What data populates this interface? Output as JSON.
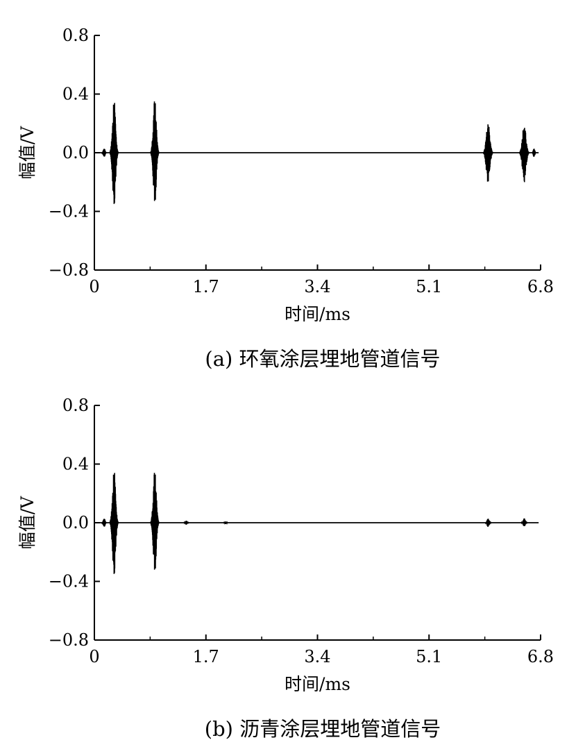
{
  "chart_data": [
    {
      "type": "line",
      "caption": "(a) 环氧涂层埋地管道信号",
      "xlabel": "时间/ms",
      "ylabel": "幅值/V",
      "xlim": [
        0,
        6.8
      ],
      "ylim": [
        -0.8,
        0.8
      ],
      "x_ticks": [
        {
          "value": 0,
          "label": "0"
        },
        {
          "value": 1.7,
          "label": "1.7"
        },
        {
          "value": 3.4,
          "label": "3.4"
        },
        {
          "value": 5.1,
          "label": "5.1"
        },
        {
          "value": 6.8,
          "label": "6.8"
        }
      ],
      "x_minor_ticks": [
        0.85,
        2.55,
        4.25,
        5.95
      ],
      "y_ticks": [
        {
          "value": -0.8,
          "label": "−0.8"
        },
        {
          "value": -0.4,
          "label": "−0.4"
        },
        {
          "value": 0.0,
          "label": "0.0"
        },
        {
          "value": 0.4,
          "label": "0.4"
        },
        {
          "value": 0.8,
          "label": "0.8"
        }
      ],
      "grid": false,
      "series": [
        {
          "color": "#000000",
          "baseline": 0.0,
          "bursts": [
            {
              "center": 0.15,
              "amp_pos": 0.03,
              "amp_neg": -0.03,
              "width": 0.07
            },
            {
              "center": 0.3,
              "amp_pos": 0.39,
              "amp_neg": -0.37,
              "width": 0.12
            },
            {
              "center": 0.92,
              "amp_pos": 0.37,
              "amp_neg": -0.36,
              "width": 0.12
            },
            {
              "center": 6.0,
              "amp_pos": 0.21,
              "amp_neg": -0.22,
              "width": 0.14
            },
            {
              "center": 6.55,
              "amp_pos": 0.2,
              "amp_neg": -0.21,
              "width": 0.14
            },
            {
              "center": 6.7,
              "amp_pos": 0.03,
              "amp_neg": -0.03,
              "width": 0.06
            }
          ]
        }
      ]
    },
    {
      "type": "line",
      "caption": "(b) 沥青涂层埋地管道信号",
      "xlabel": "时间/ms",
      "ylabel": "幅值/V",
      "xlim": [
        0,
        6.8
      ],
      "ylim": [
        -0.8,
        0.8
      ],
      "x_ticks": [
        {
          "value": 0,
          "label": "0"
        },
        {
          "value": 1.7,
          "label": "1.7"
        },
        {
          "value": 3.4,
          "label": "3.4"
        },
        {
          "value": 5.1,
          "label": "5.1"
        },
        {
          "value": 6.8,
          "label": "6.8"
        }
      ],
      "x_minor_ticks": [
        0.85,
        2.55,
        4.25,
        5.95
      ],
      "y_ticks": [
        {
          "value": -0.8,
          "label": "−0.8"
        },
        {
          "value": -0.4,
          "label": "−0.4"
        },
        {
          "value": 0.0,
          "label": "0.0"
        },
        {
          "value": 0.4,
          "label": "0.4"
        },
        {
          "value": 0.8,
          "label": "0.8"
        }
      ],
      "grid": false,
      "series": [
        {
          "color": "#000000",
          "baseline": 0.0,
          "bursts": [
            {
              "center": 0.15,
              "amp_pos": 0.03,
              "amp_neg": -0.03,
              "width": 0.07
            },
            {
              "center": 0.3,
              "amp_pos": 0.39,
              "amp_neg": -0.37,
              "width": 0.12
            },
            {
              "center": 0.92,
              "amp_pos": 0.36,
              "amp_neg": -0.35,
              "width": 0.12
            },
            {
              "center": 1.4,
              "amp_pos": 0.015,
              "amp_neg": -0.015,
              "width": 0.06
            },
            {
              "center": 2.0,
              "amp_pos": 0.01,
              "amp_neg": -0.01,
              "width": 0.05
            },
            {
              "center": 6.0,
              "amp_pos": 0.03,
              "amp_neg": -0.03,
              "width": 0.08
            },
            {
              "center": 6.55,
              "amp_pos": 0.03,
              "amp_neg": -0.03,
              "width": 0.08
            }
          ]
        }
      ]
    }
  ]
}
